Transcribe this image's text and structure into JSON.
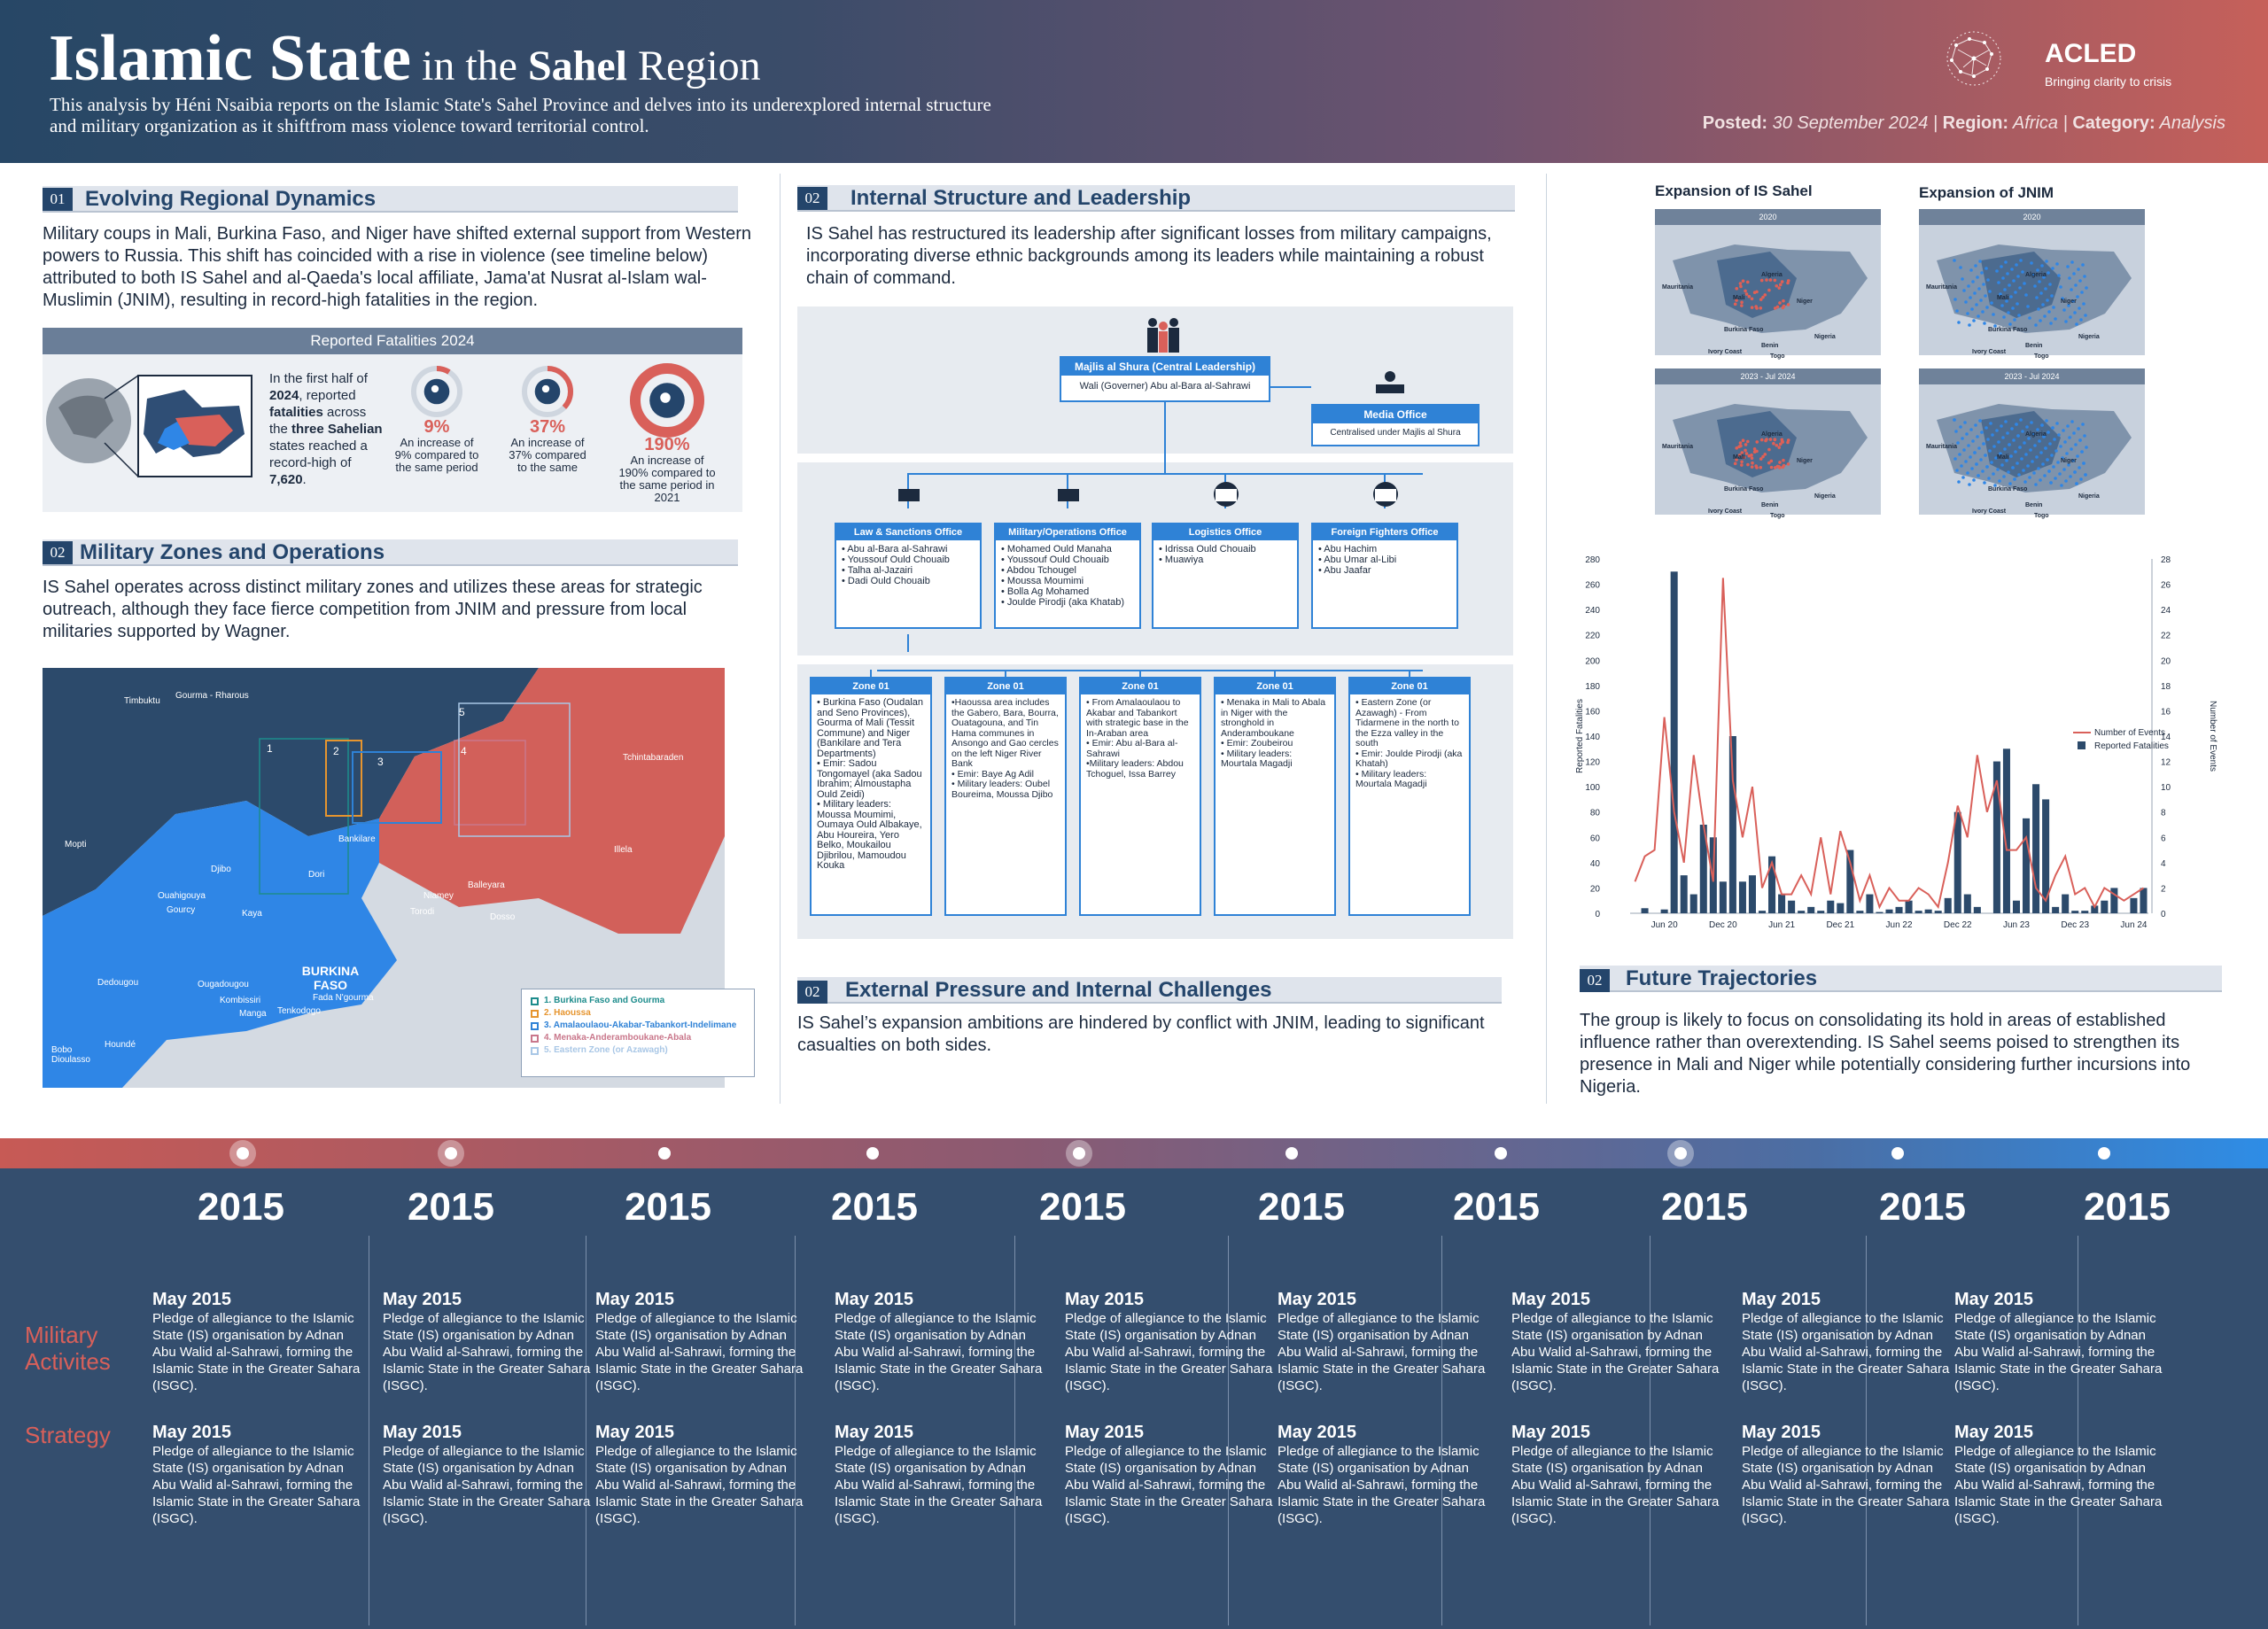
{
  "header": {
    "title_main": "Islamic State",
    "title_in": " in the ",
    "title_sahel": "Sahel",
    "title_region": " Region",
    "intro": "This  analysis by Héni Nsaibia reports on the Islamic State's Sahel Province and delves into its underexplored internal structure and military organization as it shiftfrom mass violence toward territorial control.",
    "logo_name": "ACLED",
    "logo_tagline": "Bringing clarity to crisis",
    "posted_label": "Posted:",
    "posted_value": " 30 September 2024 | ",
    "region_label": "Region:",
    "region_value": " Africa | ",
    "category_label": "Category:",
    "category_value": " Analysis"
  },
  "sections": {
    "s1": {
      "num": "01",
      "title": "Evolving Regional Dynamics",
      "body": "Military coups in Mali, Burkina Faso, and Niger have shifted external support from Western powers to Russia. This shift has coincided with a rise in violence (see timeline below) attributed to both IS Sahel and al-Qaeda's local affiliate, Jama'at Nusrat al-Islam wal-Muslimin (JNIM), resulting in record-high fatalities in the region."
    },
    "s2": {
      "num": "02",
      "title": "Military Zones and Operations",
      "body": "IS Sahel operates across distinct military zones and utilizes these areas for strategic outreach, although they face fierce competition from JNIM and pressure from local militaries supported by Wagner."
    },
    "s3": {
      "num": "02",
      "title": "Internal Structure and Leadership",
      "body": "IS Sahel has restructured its leadership after significant losses from military campaigns, incorporating diverse ethnic backgrounds among its leaders while maintaining a robust chain of command."
    },
    "s4": {
      "num": "02",
      "title": "External Pressure and Internal Challenges",
      "body": "IS Sahel’s expansion ambitions are hindered by conflict with JNIM, leading to significant casualties on both sides."
    },
    "s5": {
      "num": "02",
      "title": "Future Trajectories",
      "body": "The group is likely to focus on consolidating its hold in areas of established influence rather than overextending. IS Sahel seems poised to strengthen its presence in Mali and Niger while potentially considering further incursions into Nigeria."
    }
  },
  "fatalities": {
    "heading": "Reported Fatalities 2024",
    "lead_1": "In the first half of ",
    "lead_year": "2024",
    "lead_2": ", reported ",
    "lead_fat": "fatalities",
    "lead_3": " across the ",
    "lead_states": "three Sahelian",
    "lead_4": " states reached a record-high of ",
    "lead_total": "7,620",
    "lead_5": ".",
    "stats": [
      {
        "pct": "9%",
        "text": "An increase of 9% compared to the same period",
        "fraction": 0.09
      },
      {
        "pct": "37%",
        "text": "An increase of 37% compared to the same",
        "fraction": 0.37
      },
      {
        "pct": "190%",
        "text": "An increase of 190% compared to the same period in 2021",
        "fraction": 1.0
      }
    ]
  },
  "zone_map": {
    "places": [
      "Timbuktu",
      "Gourma - Rharous",
      "Mopti",
      "Djibo",
      "Ouahigouya",
      "Gourcy",
      "Kaya",
      "Dori",
      "Bankilare",
      "Niamey",
      "Balleyara",
      "Torodi",
      "Dosso",
      "Illela",
      "Tchintabaraden",
      "Dedougou",
      "Ougadougou",
      "Kombissiri",
      "Fada N'gourma",
      "Tenkodogo",
      "Manga",
      "Houndé",
      "Bobo Dioulasso",
      "BURKINA FASO"
    ],
    "box_numbers": [
      "1",
      "2",
      "3",
      "4",
      "5"
    ],
    "legend": [
      {
        "label": "1.   Burkina Faso and Gourma",
        "color": "#1d8c8c"
      },
      {
        "label": "2.   Haoussa",
        "color": "#e6952f"
      },
      {
        "label": "3.   Amalaoulaou-Akabar-Tabankort-Indelimane",
        "color": "#2f82d6"
      },
      {
        "label": "4.   Menaka-Anderamboukane-Abala",
        "color": "#c9778b"
      },
      {
        "label": "5.   Eastern Zone (or Azawagh)",
        "color": "#a9c7e6"
      }
    ]
  },
  "org": {
    "majlis_title": "Majlis al Shura (Central Leadership)",
    "majlis_sub": "Wali (Governer) Abu al-Bara al-Sahrawi",
    "media_title": "Media Office",
    "media_sub": "Centralised under Majlis al Shura",
    "offices": [
      {
        "title": "Law & Sanctions Office",
        "items": "• Abu al-Bara al-Sahrawi\n• Youssouf Ould Chouaib\n• Talha al-Jazairi\n• Dadi Ould Chouaib"
      },
      {
        "title": "Military/Operations Office",
        "items": "• Mohamed Ould Manaha\n• Youssouf Ould Chouaib\n• Abdou Tchougel\n• Moussa Moumimi\n• Bolla Ag Mohamed\n• Joulde Pirodji (aka Khatab)"
      },
      {
        "title": "Logistics Office",
        "items": "• Idrissa Ould Chouaib\n• Muawiya"
      },
      {
        "title": "Foreign Fighters Office",
        "items": "• Abu Hachim\n• Abu Umar al-Libi\n• Abu Jaafar"
      }
    ],
    "zones": [
      {
        "title": "Zone 01",
        "items": "• Burkina Faso (Oudalan and Seno Provinces), Gourma of Mali (Tessit Commune) and Niger (Bankilare and Tera Departments)\n• Emir: Sadou Tongomayel (aka Sadou Ibrahim; Almoustapha Ould Zeidi)\n• Military leaders: Moussa Moumimi, Oumaya Ould Albakaye, Abu Houreira, Yero Belko, Moukailou Djibrilou, Mamoudou Kouka"
      },
      {
        "title": "Zone 01",
        "items": "•Haoussa area includes the Gabero, Bara, Bourra, Ouatagouna, and Tin Hama communes in Ansongo and Gao cercles on the left Niger River Bank\n• Emir: Baye Ag Adil\n• Military leaders: Oubel Boureima, Moussa Djibo"
      },
      {
        "title": "Zone 01",
        "items": "• From Amalaoulaou to Akabar and Tabankort with strategic base in the In-Araban area\n• Emir: Abu al-Bara al-Sahrawi\n•Military leaders: Abdou Tchoguel, Issa Barrey"
      },
      {
        "title": "Zone 01",
        "items": "• Menaka in Mali to Abala in Niger with the stronghold in Anderamboukane\n• Emir: Zoubeirou\n• Military leaders: Mourtala Magadji"
      },
      {
        "title": "Zone 01",
        "items": "• Eastern Zone (or Azawagh) - From Tidarmene in the north to the Ezza valley in the south\n• Emir: Joulde Pirodji (aka Khatah)\n• Military leaders: Mourtala Magadji"
      }
    ]
  },
  "expansion_maps": {
    "is_title": "Expansion of IS Sahel",
    "jnim_title": "Expansion of JNIM",
    "years": [
      "2020",
      "2023 - Jul 2024"
    ],
    "labels": [
      "Mauritania",
      "Algeria",
      "Mali",
      "Niger",
      "Burkina Faso",
      "Benin",
      "Ivory Coast",
      "Nigeria",
      "Togo"
    ],
    "is_color": "#e06056",
    "jnim_color": "#2f86e6"
  },
  "chart_data": {
    "type": "bar",
    "title": "",
    "ylabel": "Reported Fatalities",
    "y2label": "Number of Events",
    "ylim": [
      0,
      280
    ],
    "y2lim": [
      0,
      28
    ],
    "yticks": [
      0,
      20,
      40,
      60,
      80,
      100,
      120,
      140,
      160,
      180,
      200,
      220,
      240,
      260,
      280
    ],
    "y2ticks": [
      0,
      2,
      4,
      6,
      8,
      10,
      12,
      14,
      16,
      18,
      20,
      22,
      24,
      26,
      28
    ],
    "xtick_labels": [
      "Jun 20",
      "Dec 20",
      "Jun 21",
      "Dec 21",
      "Jun 22",
      "Dec 22",
      "Jun 23",
      "Dec 23",
      "Jun 24"
    ],
    "xtick_index": [
      3,
      9,
      15,
      21,
      27,
      33,
      39,
      45,
      51
    ],
    "series": [
      {
        "name": "Reported Fatalities",
        "kind": "bar",
        "axis": "left",
        "color": "#2c4a6b",
        "values": [
          0,
          4,
          0,
          3,
          270,
          30,
          15,
          70,
          60,
          25,
          140,
          25,
          30,
          2,
          45,
          15,
          10,
          2,
          5,
          2,
          10,
          8,
          50,
          2,
          15,
          1,
          3,
          5,
          10,
          2,
          3,
          2,
          12,
          80,
          15,
          5,
          0,
          120,
          130,
          10,
          75,
          102,
          90,
          5,
          15,
          2,
          2,
          6,
          10,
          20,
          0,
          12,
          20
        ]
      },
      {
        "name": "Number of Events",
        "kind": "line",
        "axis": "right",
        "color": "#d9605a",
        "values": [
          2.5,
          4.5,
          5,
          15.5,
          8,
          4,
          12.5,
          7,
          2.5,
          26.5,
          10.5,
          6,
          10,
          2,
          4,
          1.5,
          1.5,
          3,
          1.5,
          6,
          1.5,
          6.5,
          4,
          1,
          3,
          0.5,
          2,
          1,
          1,
          2,
          1.5,
          0.5,
          4,
          8.5,
          6,
          12.5,
          8,
          10.5,
          5,
          5,
          6,
          2,
          1,
          3,
          4.5,
          1.5,
          2,
          0.5,
          2,
          1.5,
          1,
          1.5,
          2
        ]
      }
    ]
  },
  "timeline": {
    "rows": [
      "Military Activites",
      "Strategy"
    ],
    "columns": [
      {
        "year": "2015",
        "month": "May 2015",
        "text": "Pledge of allegiance to the Islamic State (IS) organisation by Adnan Abu Walid al-Sahrawi, forming the Islamic State in the Greater Sahara (ISGC)."
      },
      {
        "year": "2015",
        "month": "May 2015",
        "text": "Pledge of allegiance to the Islamic State (IS) organisation by Adnan Abu Walid al-Sahrawi, forming the Islamic State in the Greater Sahara (ISGC)."
      },
      {
        "year": "2015",
        "month": "May 2015",
        "text": "Pledge of allegiance to the Islamic State (IS) organisation by Adnan Abu Walid al-Sahrawi, forming the Islamic State in the Greater Sahara (ISGC)."
      },
      {
        "year": "2015",
        "month": "May 2015",
        "text": "Pledge of allegiance to the Islamic State (IS) organisation by Adnan Abu Walid al-Sahrawi, forming the Islamic State in the Greater Sahara (ISGC)."
      },
      {
        "year": "2015",
        "month": "May 2015",
        "text": "Pledge of allegiance to the Islamic State (IS) organisation by Adnan Abu Walid al-Sahrawi, forming the Islamic State in the Greater Sahara (ISGC)."
      },
      {
        "year": "2015",
        "month": "May 2015",
        "text": "Pledge of allegiance to the Islamic State (IS) organisation by Adnan Abu Walid al-Sahrawi, forming the Islamic State in the Greater Sahara (ISGC)."
      },
      {
        "year": "2015",
        "month": "May 2015",
        "text": "Pledge of allegiance to the Islamic State (IS) organisation by Adnan Abu Walid al-Sahrawi, forming the Islamic State in the Greater Sahara (ISGC)."
      },
      {
        "year": "2015",
        "month": "May 2015",
        "text": "Pledge of allegiance to the Islamic State (IS) organisation by Adnan Abu Walid al-Sahrawi, forming the Islamic State in the Greater Sahara (ISGC)."
      },
      {
        "year": "2015",
        "month": "May 2015",
        "text": "Pledge of allegiance to the Islamic State (IS) organisation by Adnan Abu Walid al-Sahrawi, forming the Islamic State in the Greater Sahara (ISGC)."
      },
      {
        "year": "2015",
        "month": "May 2015",
        "text": "Pledge of allegiance to the Islamic State (IS) organisation by Adnan Abu Walid al-Sahrawi, forming the Islamic State in the Greater Sahara (ISGC)."
      }
    ]
  },
  "colors": {
    "navy": "#24456b",
    "accent_red": "#d9605a",
    "accent_blue": "#2f82d6"
  }
}
